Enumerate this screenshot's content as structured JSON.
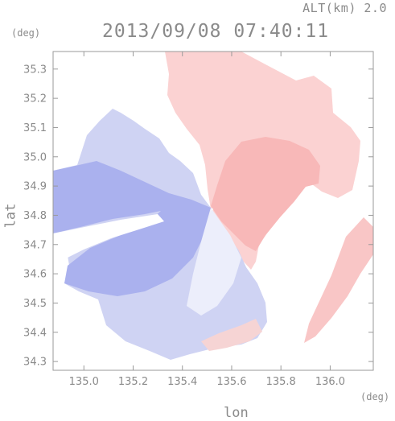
{
  "header": {
    "altitude": "ALT(km) 2.0",
    "datetime": "2013/09/08 07:40:11"
  },
  "axes": {
    "lat_unit": "(deg)",
    "lon_unit": "(deg)",
    "xlabel": "lon",
    "ylabel": "lat"
  },
  "chart_data": {
    "type": "heatmap",
    "title": "2013/09/08 07:40:11",
    "xlabel": "lon",
    "ylabel": "lat",
    "x_ticks": [
      "135.0",
      "135.2",
      "135.4",
      "135.6",
      "135.8",
      "136.0"
    ],
    "y_ticks": [
      "34.3",
      "34.4",
      "34.5",
      "34.6",
      "34.7",
      "34.8",
      "34.9",
      "35.0",
      "35.1",
      "35.2",
      "35.3"
    ],
    "xlim": [
      134.875,
      136.175
    ],
    "ylim": [
      34.27,
      35.36
    ],
    "radar_center": {
      "lon": 135.52,
      "lat": 34.82
    },
    "colors": {
      "approach": "#a8b0f0",
      "recede": "#f8b0b0",
      "neutral": "#f6f6fb"
    }
  }
}
